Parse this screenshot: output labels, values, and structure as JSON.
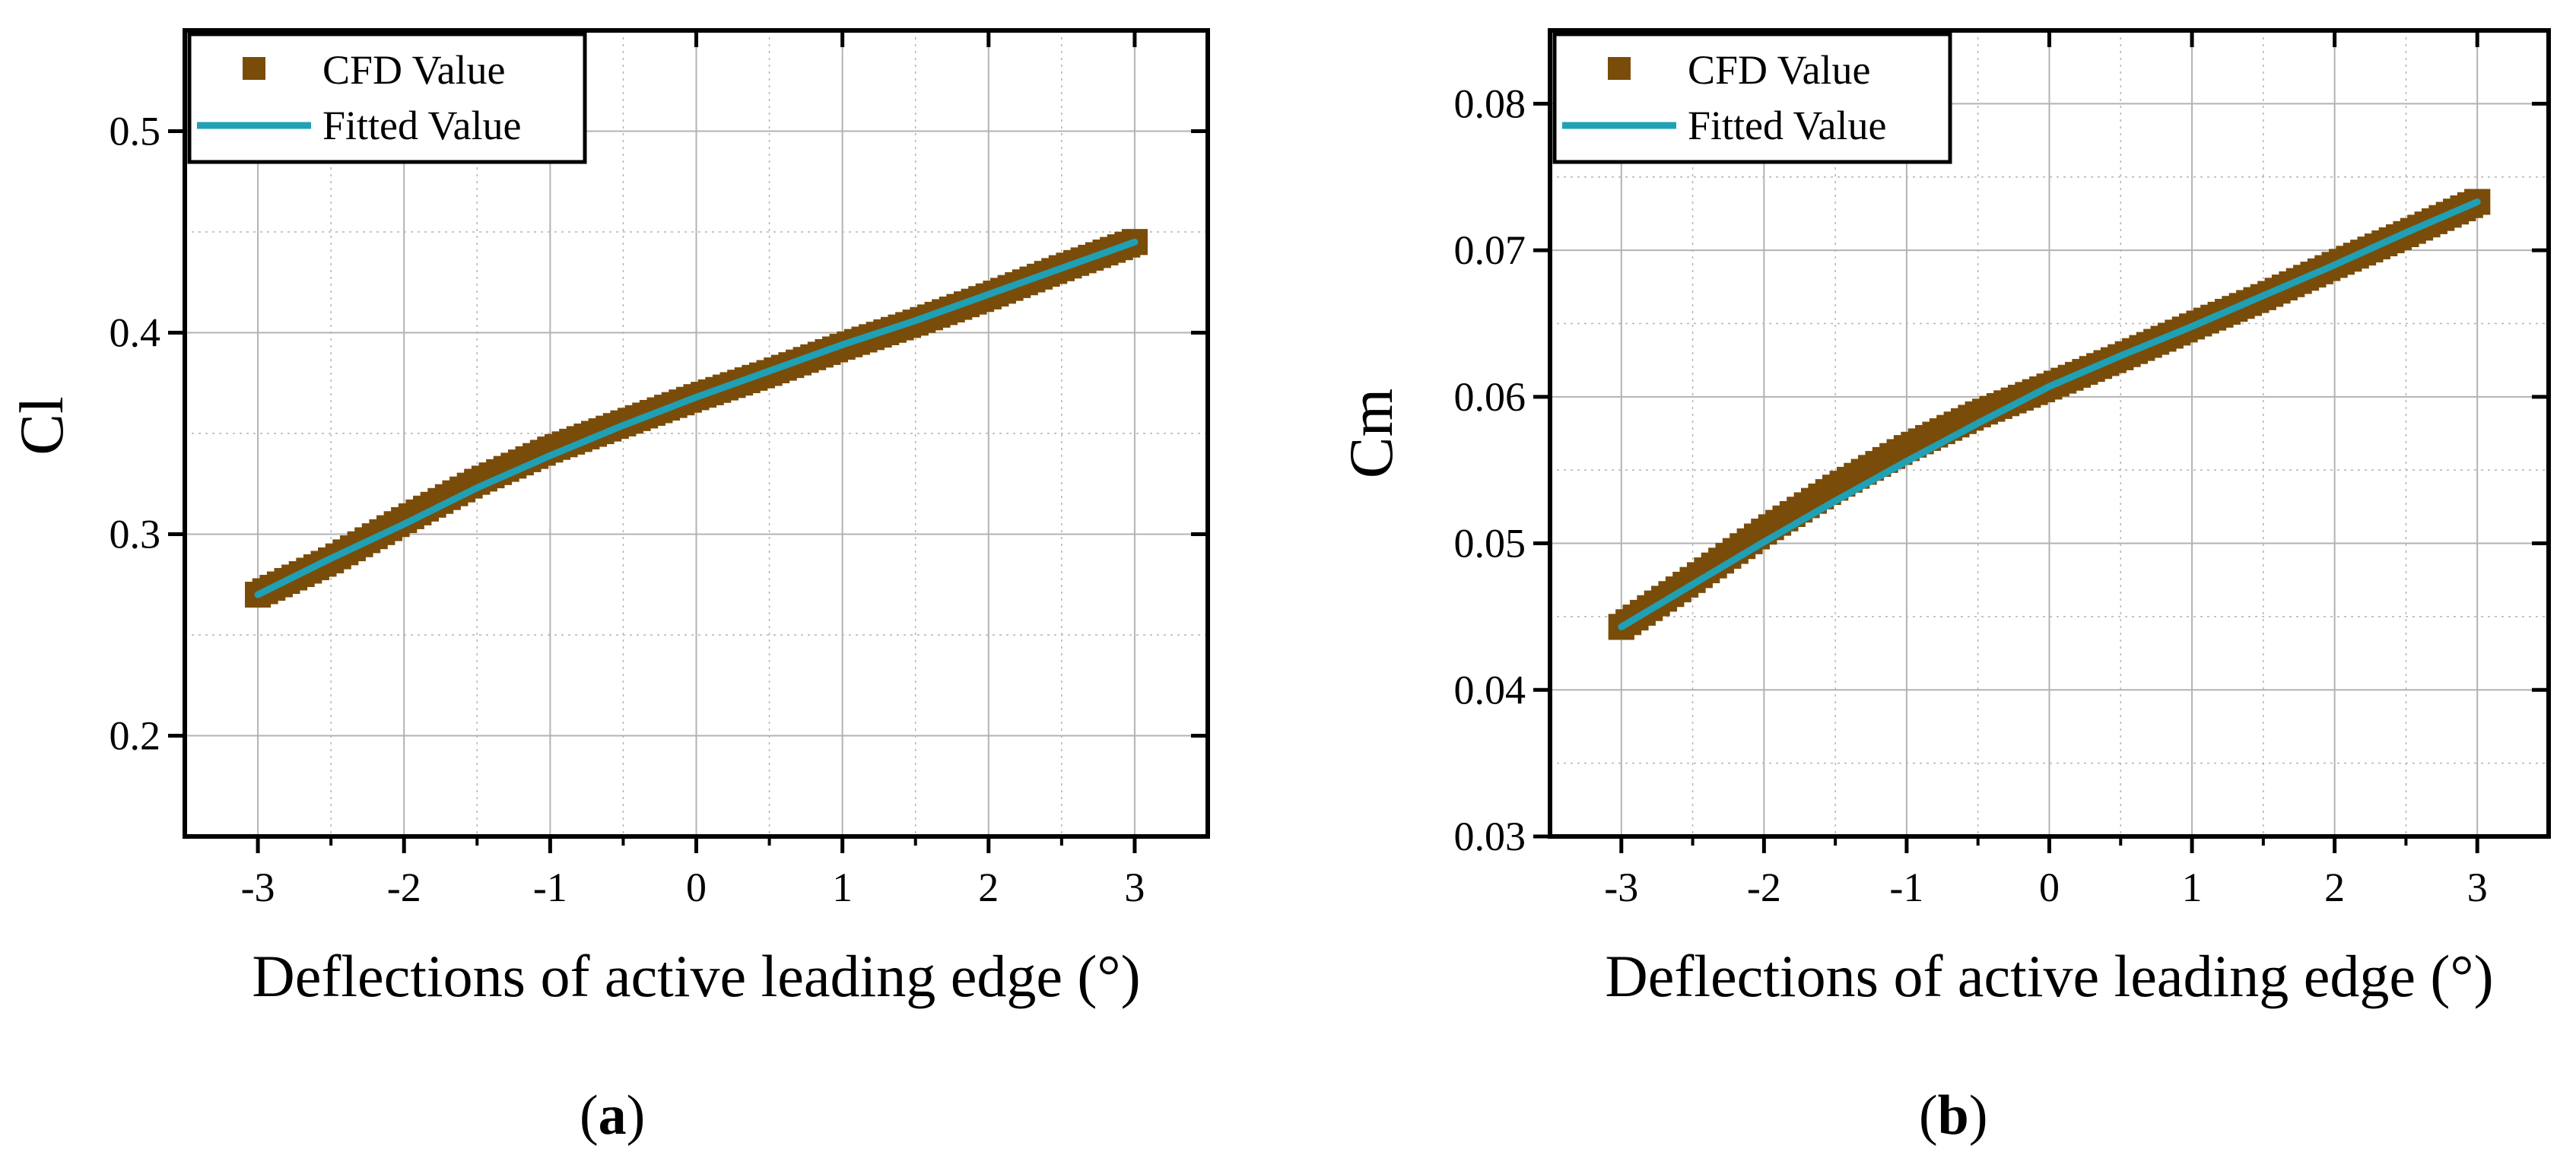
{
  "figure": {
    "panel_labels": [
      "a",
      "b"
    ]
  },
  "colors": {
    "cfd_marker": "#7A4C0A",
    "fit_line": "#1FA0B4",
    "grid": "#B3B3B3",
    "axis": "#000000"
  },
  "chart_data": [
    {
      "type": "scatter",
      "title": "",
      "xlabel": "Deflections of active leading edge (°)",
      "ylabel": "Cl",
      "xlim": [
        -3.5,
        3.5
      ],
      "ylim": [
        0.15,
        0.55
      ],
      "xticks": [
        -3,
        -2,
        -1,
        0,
        1,
        2,
        3
      ],
      "xtick_labels": [
        "-3",
        "-2",
        "-1",
        "0",
        "1",
        "2",
        "3"
      ],
      "yticks": [
        0.2,
        0.3,
        0.4,
        0.5
      ],
      "ytick_labels": [
        "0.2",
        "0.3",
        "0.4",
        "0.5"
      ],
      "grid": true,
      "legend_position": "top-left",
      "series": [
        {
          "name": "CFD Value",
          "kind": "markers",
          "x": [
            -3,
            -2.5,
            -2,
            -1.5,
            -1,
            -0.5,
            0,
            0.5,
            1,
            1.5,
            2,
            2.5,
            3
          ],
          "y": [
            0.27,
            0.287,
            0.307,
            0.326,
            0.342,
            0.355,
            0.368,
            0.38,
            0.393,
            0.405,
            0.418,
            0.432,
            0.445
          ]
        },
        {
          "name": "Fitted Value",
          "kind": "line",
          "x": [
            -3,
            -2.5,
            -2,
            -1.5,
            -1,
            -0.5,
            0,
            0.5,
            1,
            1.5,
            2,
            2.5,
            3
          ],
          "y": [
            0.27,
            0.288,
            0.305,
            0.323,
            0.339,
            0.354,
            0.368,
            0.381,
            0.394,
            0.406,
            0.419,
            0.432,
            0.445
          ]
        }
      ]
    },
    {
      "type": "scatter",
      "title": "",
      "xlabel": "Deflections of active leading edge (°)",
      "ylabel": "Cm",
      "xlim": [
        -3.5,
        3.5
      ],
      "ylim": [
        0.03,
        0.085
      ],
      "xticks": [
        -3,
        -2,
        -1,
        0,
        1,
        2,
        3
      ],
      "xtick_labels": [
        "-3",
        "-2",
        "-1",
        "0",
        "1",
        "2",
        "3"
      ],
      "yticks": [
        0.03,
        0.04,
        0.05,
        0.06,
        0.07,
        0.08
      ],
      "ytick_labels": [
        "0.03",
        "0.04",
        "0.05",
        "0.06",
        "0.07",
        "0.08"
      ],
      "grid": true,
      "legend_position": "top-left",
      "series": [
        {
          "name": "CFD Value",
          "kind": "markers",
          "x": [
            -3,
            -2.5,
            -2,
            -1.5,
            -1,
            -0.5,
            0,
            0.5,
            1,
            1.5,
            2,
            2.5,
            3
          ],
          "y": [
            0.0443,
            0.0475,
            0.0508,
            0.0538,
            0.0565,
            0.0588,
            0.0607,
            0.0627,
            0.0648,
            0.0668,
            0.069,
            0.0711,
            0.0733
          ]
        },
        {
          "name": "Fitted Value",
          "kind": "line",
          "x": [
            -3,
            -2.5,
            -2,
            -1.5,
            -1,
            -0.5,
            0,
            0.5,
            1,
            1.5,
            2,
            2.5,
            3
          ],
          "y": [
            0.0443,
            0.0472,
            0.0501,
            0.0529,
            0.0556,
            0.0582,
            0.0607,
            0.0628,
            0.0648,
            0.0669,
            0.069,
            0.0712,
            0.0733
          ]
        }
      ]
    }
  ]
}
